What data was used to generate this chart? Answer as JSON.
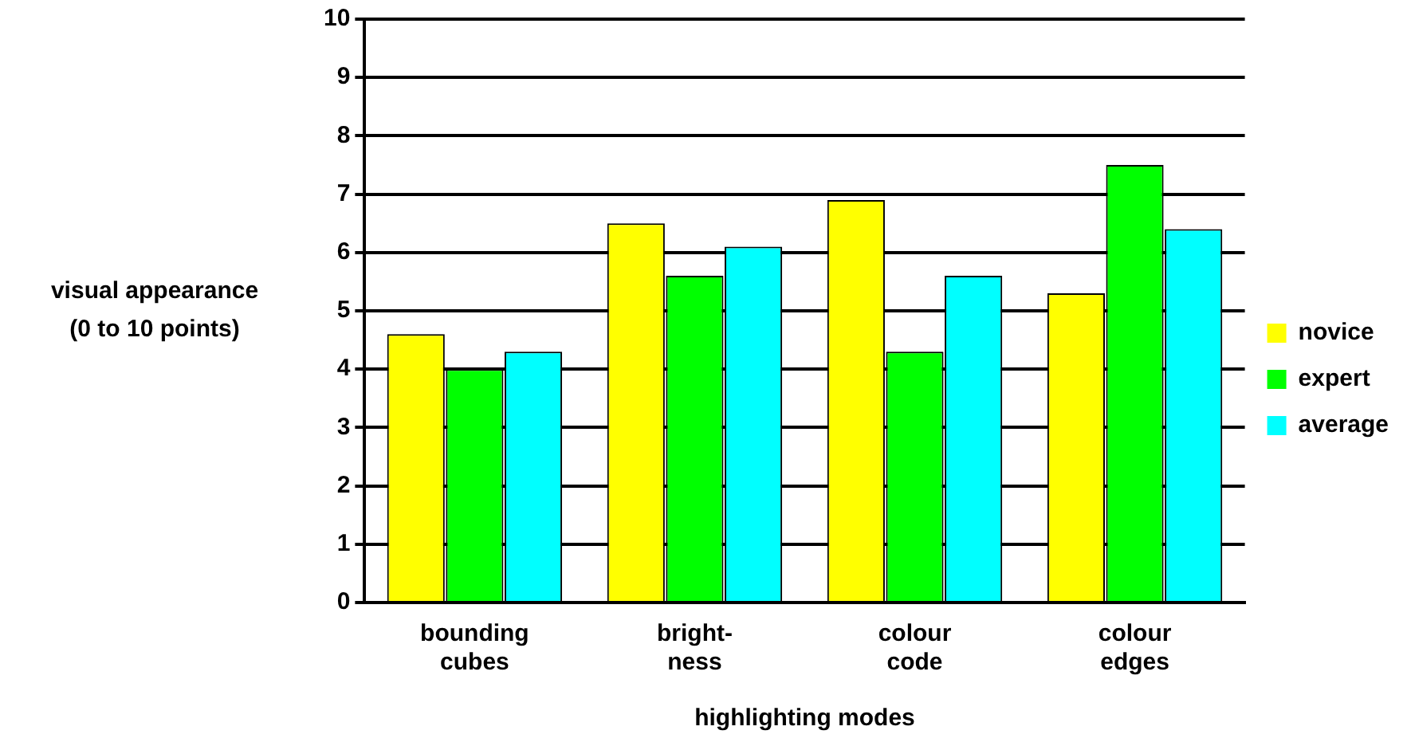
{
  "chart_data": {
    "type": "bar",
    "xlabel": "highlighting modes",
    "ylabel": "visual appearance\n(0 to 10 points)",
    "categories": [
      "bounding cubes",
      "bright-ness",
      "colour code",
      "colour edges"
    ],
    "series": [
      {
        "name": "novice",
        "color": "#ffff00",
        "values": [
          4.6,
          6.5,
          6.9,
          5.3
        ]
      },
      {
        "name": "expert",
        "color": "#00ff00",
        "values": [
          4.0,
          5.6,
          4.3,
          7.5
        ]
      },
      {
        "name": "average",
        "color": "#00ffff",
        "values": [
          4.3,
          6.1,
          5.6,
          6.4
        ]
      }
    ],
    "ylim": [
      0,
      10
    ],
    "yticks": [
      0,
      1,
      2,
      3,
      4,
      5,
      6,
      7,
      8,
      9,
      10
    ],
    "grid": "y",
    "legend": "right"
  }
}
